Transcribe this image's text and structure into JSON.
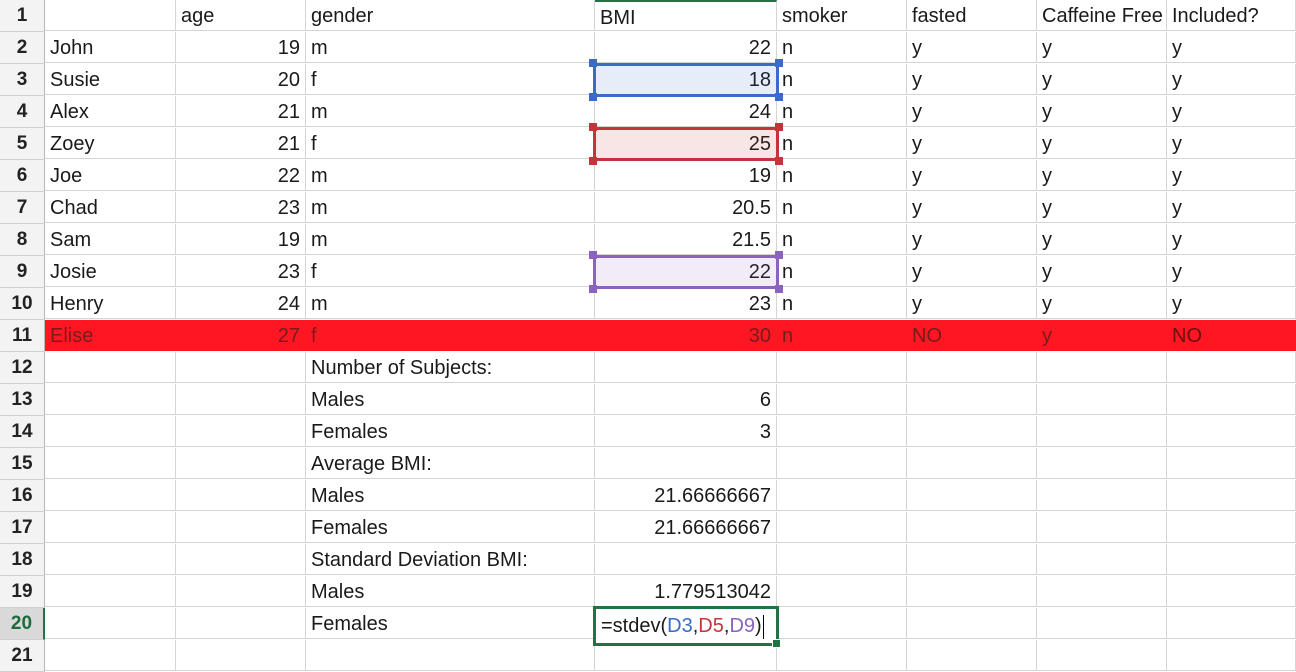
{
  "columns_header": [
    "",
    "age",
    "gender",
    "BMI",
    "smoker",
    "fasted",
    "Caffeine Free",
    "Included?"
  ],
  "rows": [
    {
      "n": "1"
    },
    {
      "n": "2",
      "A": "John",
      "B": "19",
      "C": "m",
      "D": "22",
      "E": "n",
      "F": "y",
      "G": "y",
      "H": "y"
    },
    {
      "n": "3",
      "A": "Susie",
      "B": "20",
      "C": "f",
      "D": "18",
      "E": "n",
      "F": "y",
      "G": "y",
      "H": "y"
    },
    {
      "n": "4",
      "A": "Alex",
      "B": "21",
      "C": "m",
      "D": "24",
      "E": "n",
      "F": "y",
      "G": "y",
      "H": "y"
    },
    {
      "n": "5",
      "A": "Zoey",
      "B": "21",
      "C": "f",
      "D": "25",
      "E": "n",
      "F": "y",
      "G": "y",
      "H": "y"
    },
    {
      "n": "6",
      "A": "Joe",
      "B": "22",
      "C": "m",
      "D": "19",
      "E": "n",
      "F": "y",
      "G": "y",
      "H": "y"
    },
    {
      "n": "7",
      "A": "Chad",
      "B": "23",
      "C": "m",
      "D": "20.5",
      "E": "n",
      "F": "y",
      "G": "y",
      "H": "y"
    },
    {
      "n": "8",
      "A": "Sam",
      "B": "19",
      "C": "m",
      "D": "21.5",
      "E": "n",
      "F": "y",
      "G": "y",
      "H": "y"
    },
    {
      "n": "9",
      "A": "Josie",
      "B": "23",
      "C": "f",
      "D": "22",
      "E": "n",
      "F": "y",
      "G": "y",
      "H": "y"
    },
    {
      "n": "10",
      "A": "Henry",
      "B": "24",
      "C": "m",
      "D": "23",
      "E": "n",
      "F": "y",
      "G": "y",
      "H": "y"
    },
    {
      "n": "11",
      "A": "Elise",
      "B": "27",
      "C": "f",
      "D": "30",
      "E": "n",
      "F": "NO",
      "G": "y",
      "H": "NO"
    },
    {
      "n": "12",
      "C": "Number of Subjects:"
    },
    {
      "n": "13",
      "C": "Males",
      "D": "6"
    },
    {
      "n": "14",
      "C": "Females",
      "D": "3"
    },
    {
      "n": "15",
      "C": "Average BMI:"
    },
    {
      "n": "16",
      "C": "Males",
      "D": "21.66666667"
    },
    {
      "n": "17",
      "C": "Females",
      "D": "21.66666667"
    },
    {
      "n": "18",
      "C": "Standard Deviation BMI:"
    },
    {
      "n": "19",
      "C": "Males",
      "D": "1.779513042"
    },
    {
      "n": "20",
      "C": "Females"
    },
    {
      "n": "21"
    }
  ],
  "highlighted_row": "11",
  "highlight_color": "#fe1723",
  "active_row": "20",
  "active_cell": "D20",
  "formula": {
    "prefix": "=stdev(",
    "ref1": "D3",
    "sep1": ",",
    "ref2": "D5",
    "sep2": ",",
    "ref3": "D9",
    "suffix": ")"
  },
  "ref_colors": {
    "ref1": "#3b6bc7",
    "ref2": "#c4343c",
    "ref3": "#8a62c0"
  },
  "accent": "#217346"
}
